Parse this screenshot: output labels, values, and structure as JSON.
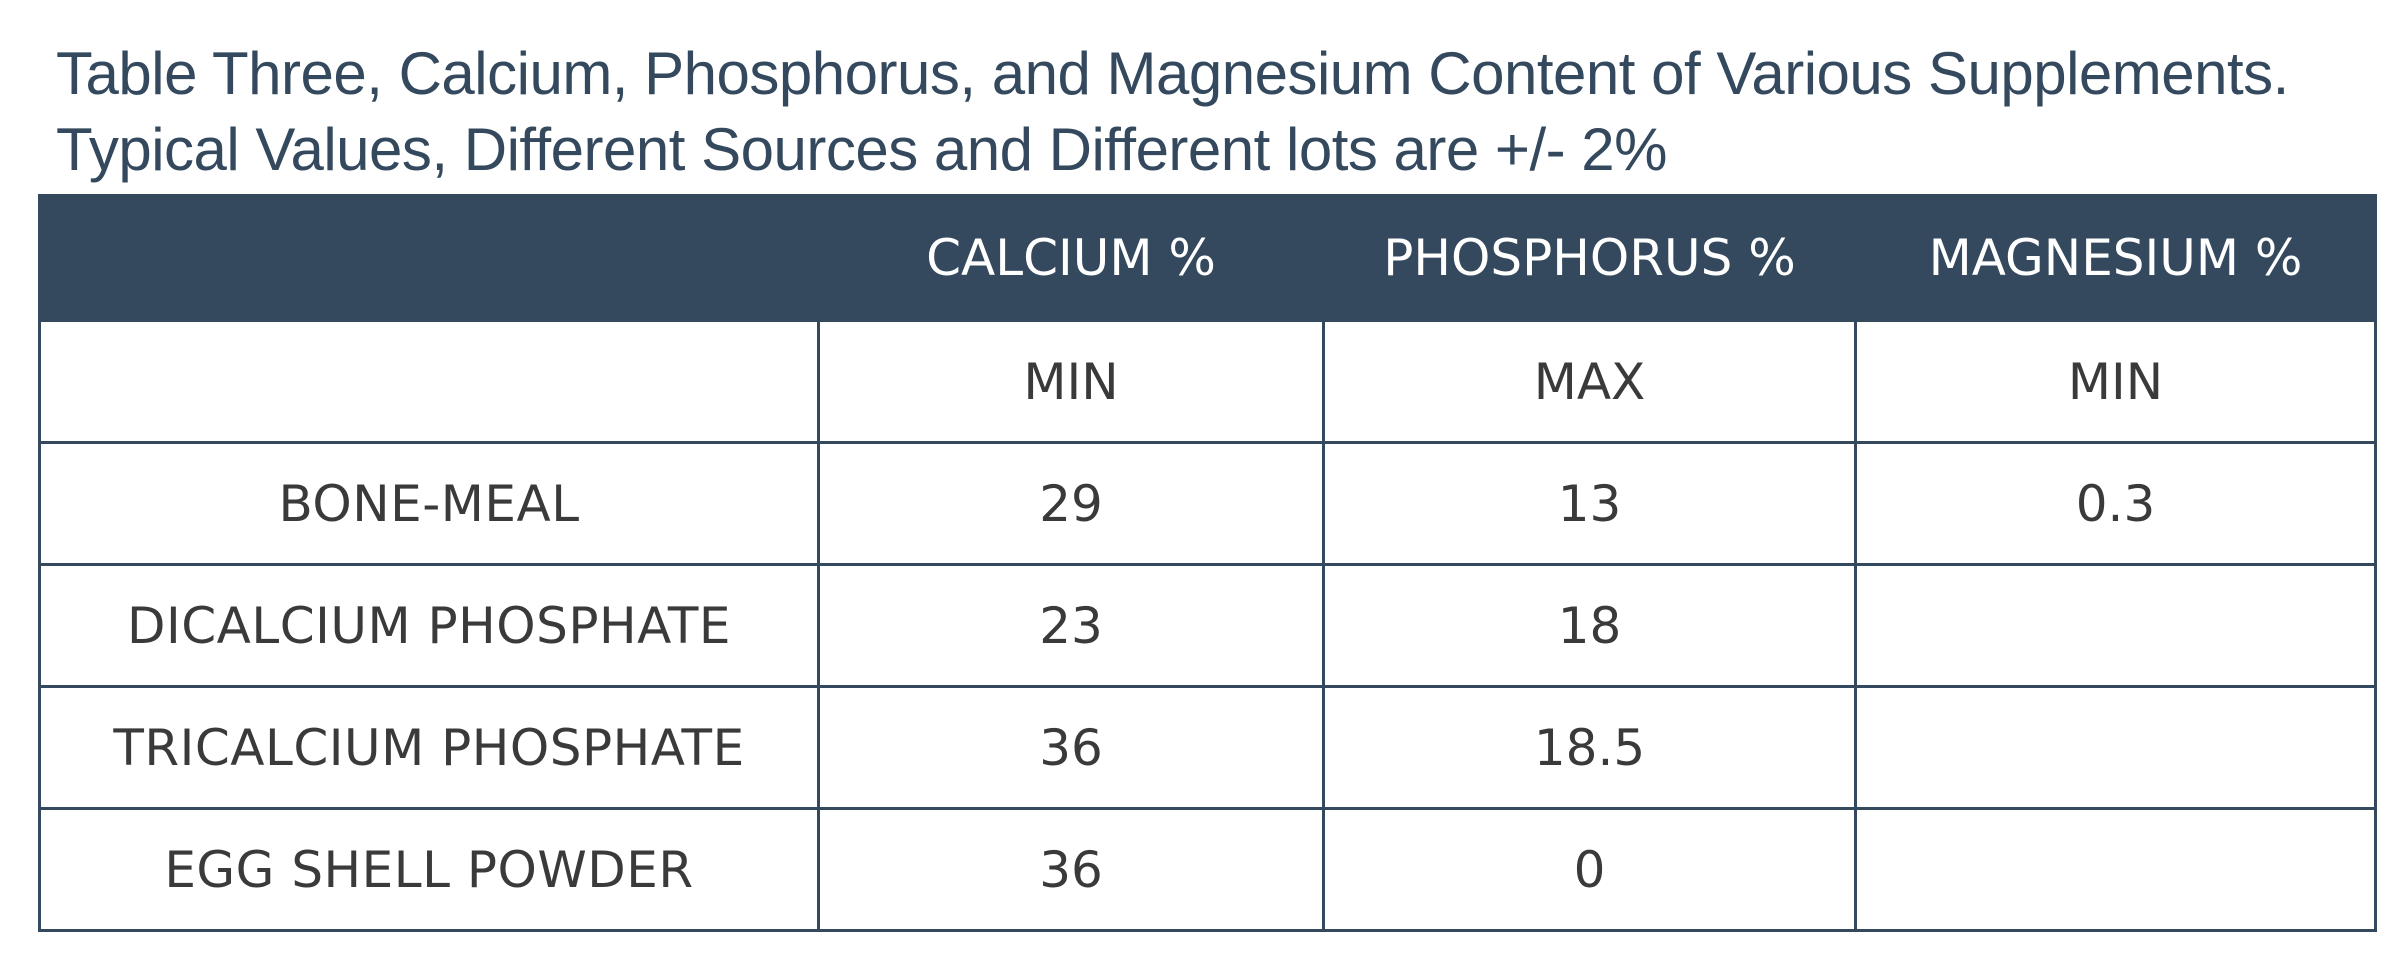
{
  "caption": {
    "line1": "Table Three, Calcium, Phosphorus, and Magnesium Content of Various Supplements.",
    "line2": "Typical Values, Different Sources and Different lots are +/- 2%"
  },
  "table": {
    "columns": [
      "",
      "CALCIUM %",
      "PHOSPHORUS %",
      "MAGNESIUM %"
    ],
    "subheader": [
      "",
      "MIN",
      "MAX",
      "MIN"
    ],
    "rows": [
      {
        "name": "BONE-MEAL",
        "calcium": "29",
        "phosphorus": "13",
        "magnesium": "0.3"
      },
      {
        "name": "DICALCIUM PHOSPHATE",
        "calcium": "23",
        "phosphorus": "18",
        "magnesium": ""
      },
      {
        "name": "TRICALCIUM PHOSPHATE",
        "calcium": "36",
        "phosphorus": "18.5",
        "magnesium": ""
      },
      {
        "name": "EGG SHELL POWDER",
        "calcium": "36",
        "phosphorus": "0",
        "magnesium": ""
      }
    ]
  },
  "colors": {
    "header_bg": "#34495e",
    "header_text": "#ffffff",
    "border": "#34495e",
    "caption_text": "#34495e"
  }
}
